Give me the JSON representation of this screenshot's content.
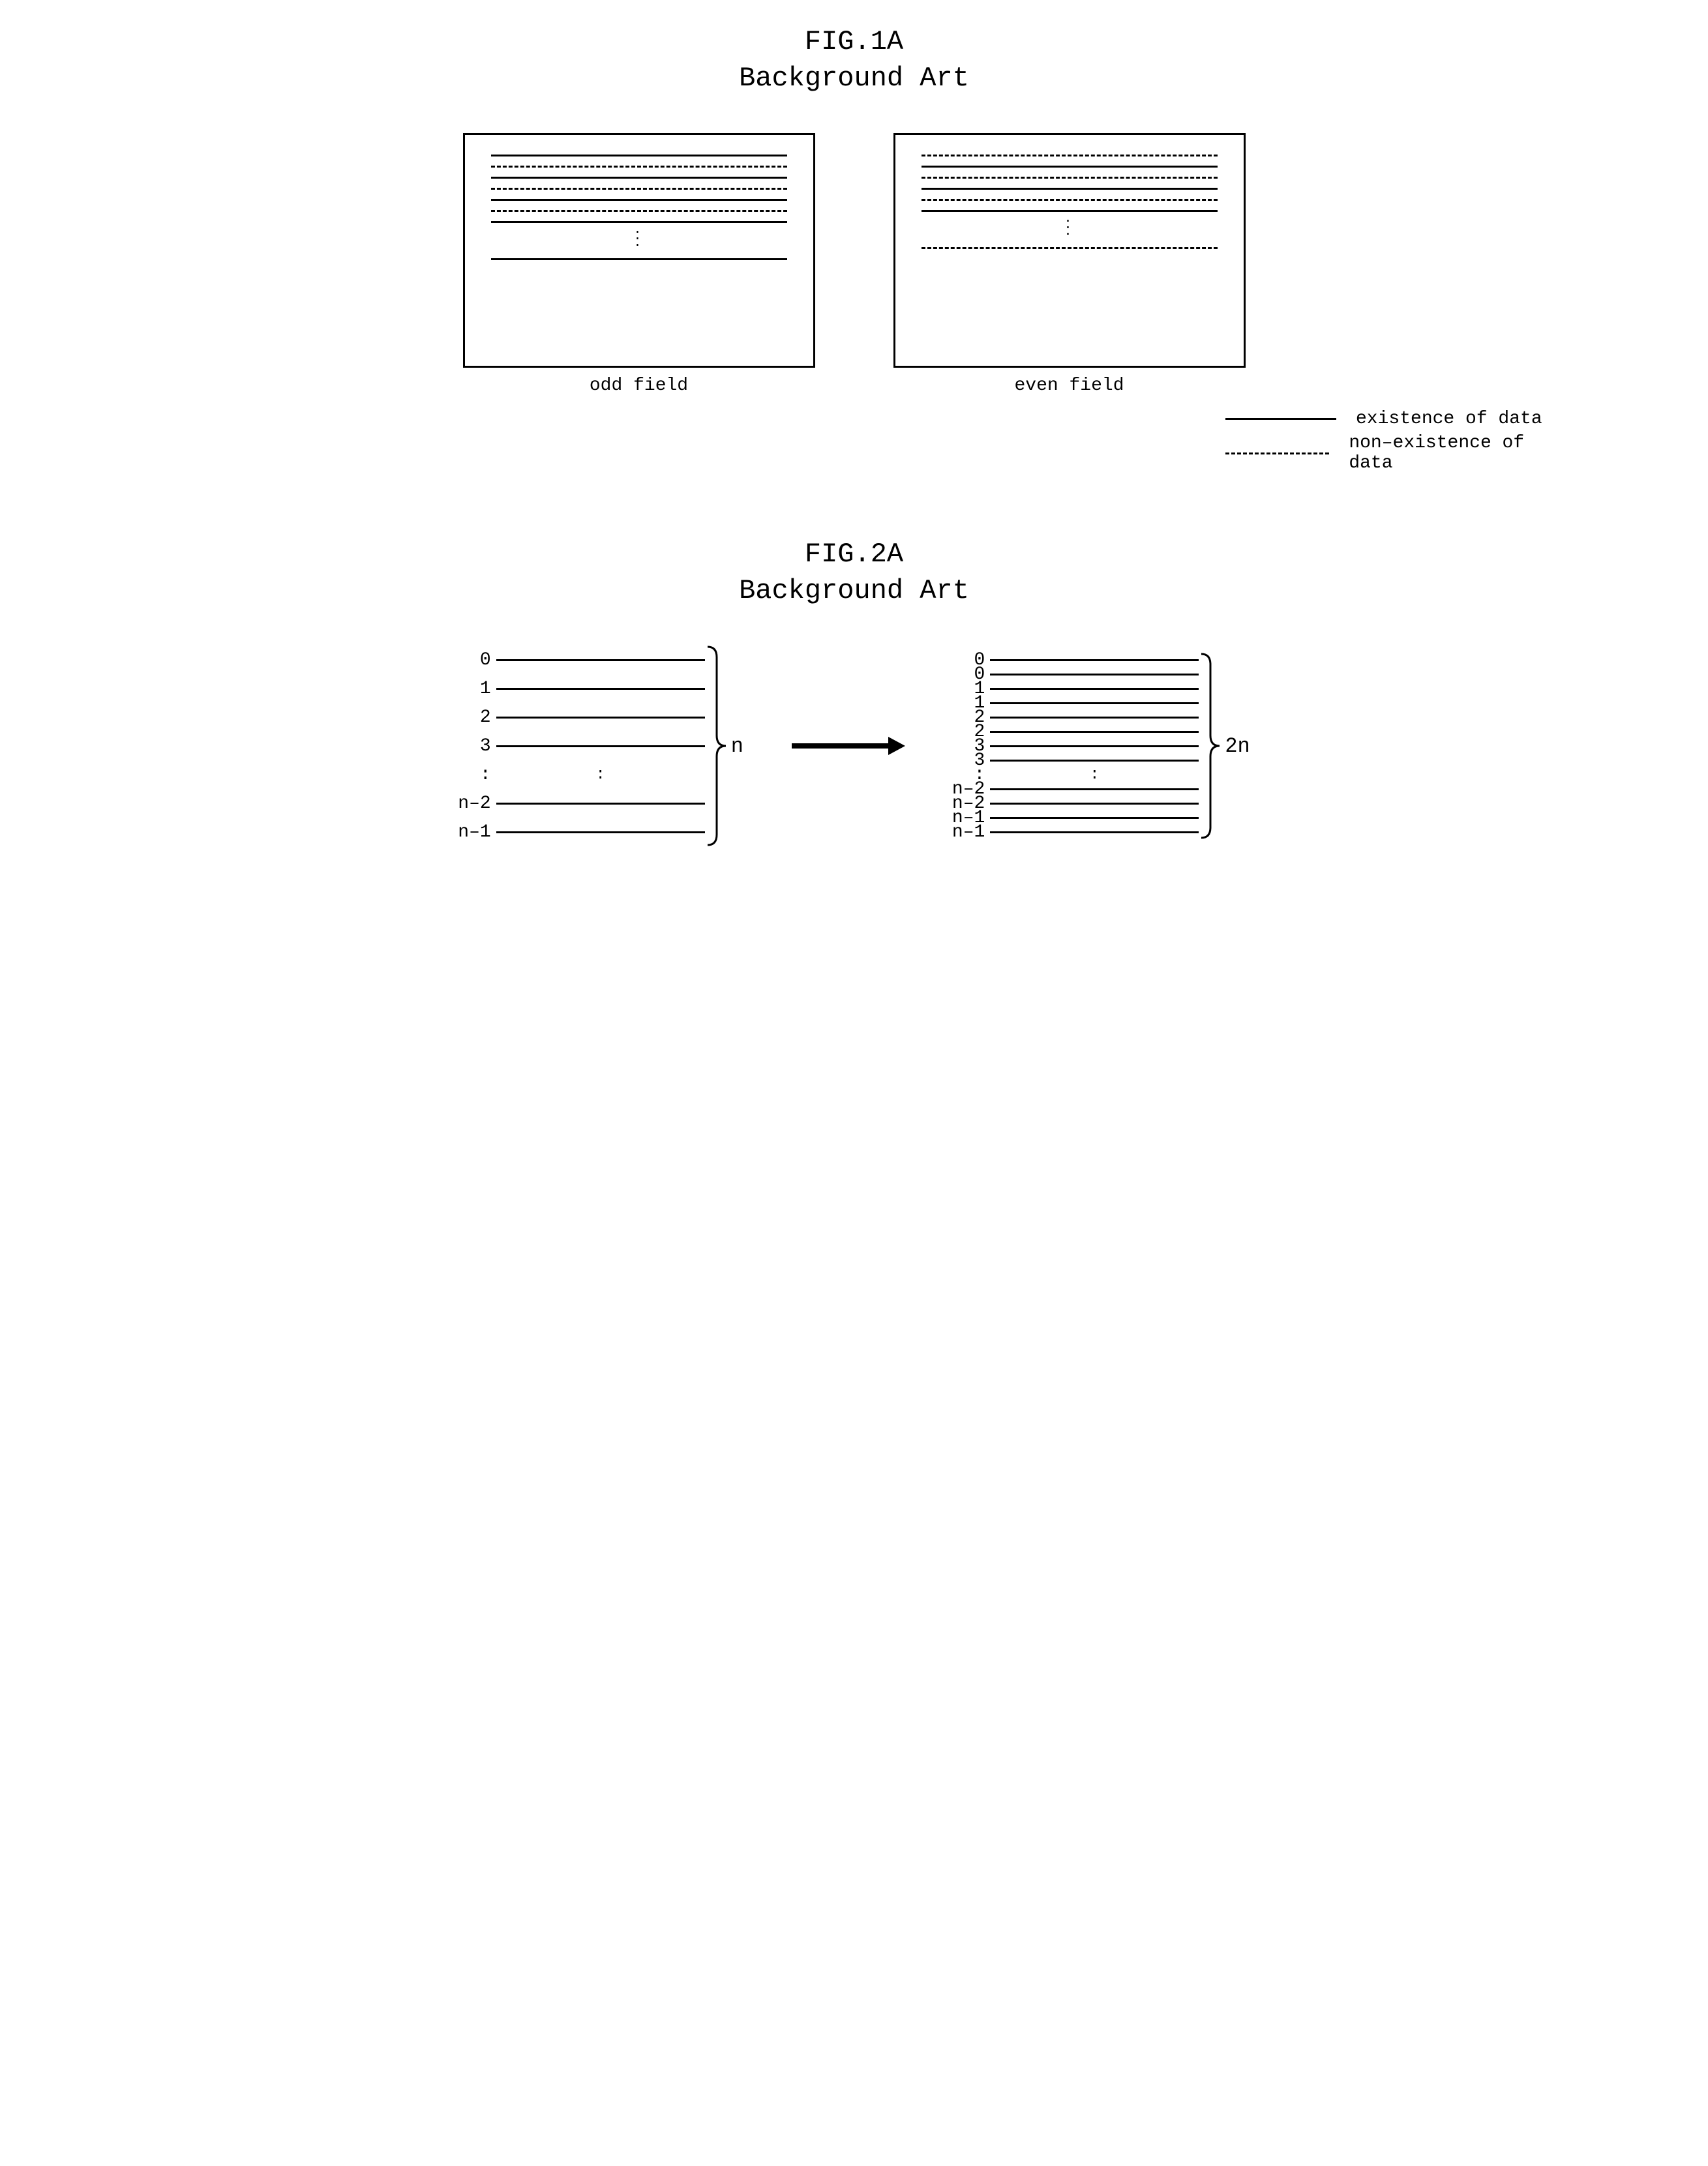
{
  "fig1": {
    "title": "FIG.1A",
    "subtitle": "Background Art",
    "panel_left": {
      "caption": "odd field",
      "rows": [
        {
          "style": "solid"
        },
        {
          "style": "dashed"
        },
        {
          "style": "solid"
        },
        {
          "style": "dashed"
        },
        {
          "style": "solid"
        },
        {
          "style": "dashed"
        },
        {
          "style": "solid"
        },
        {
          "style": "vdots"
        },
        {
          "style": "solid"
        }
      ]
    },
    "panel_right": {
      "caption": "even field",
      "rows": [
        {
          "style": "dashed"
        },
        {
          "style": "solid"
        },
        {
          "style": "dashed"
        },
        {
          "style": "solid"
        },
        {
          "style": "dashed"
        },
        {
          "style": "solid"
        },
        {
          "style": "vdots"
        },
        {
          "style": "dashed"
        }
      ]
    },
    "legend": {
      "solid_label": "existence of data",
      "dashed_label": "non–existence of data"
    },
    "colors": {
      "stroke": "#000000",
      "bg": "#ffffff"
    }
  },
  "fig2": {
    "title": "FIG.2A",
    "subtitle": "Background Art",
    "left_group": {
      "labels": [
        "0",
        "1",
        "2",
        "3",
        ":",
        "n–2",
        "n–1"
      ],
      "row_gap": 44,
      "line_width": 320,
      "count_label": "n"
    },
    "right_group": {
      "labels": [
        "0",
        "0",
        "1",
        "1",
        "2",
        "2",
        "3",
        "3",
        ":",
        "n–2",
        "n–2",
        "n–1",
        "n–1"
      ],
      "row_gap": 22,
      "line_width": 320,
      "count_label": "2n"
    },
    "arrow": {
      "length": 180,
      "stroke_width": 8,
      "color": "#000000"
    },
    "colors": {
      "stroke": "#000000"
    }
  },
  "typography": {
    "title_fontsize": 42,
    "caption_fontsize": 28,
    "label_fontsize": 28,
    "font_family": "Courier New, monospace"
  }
}
